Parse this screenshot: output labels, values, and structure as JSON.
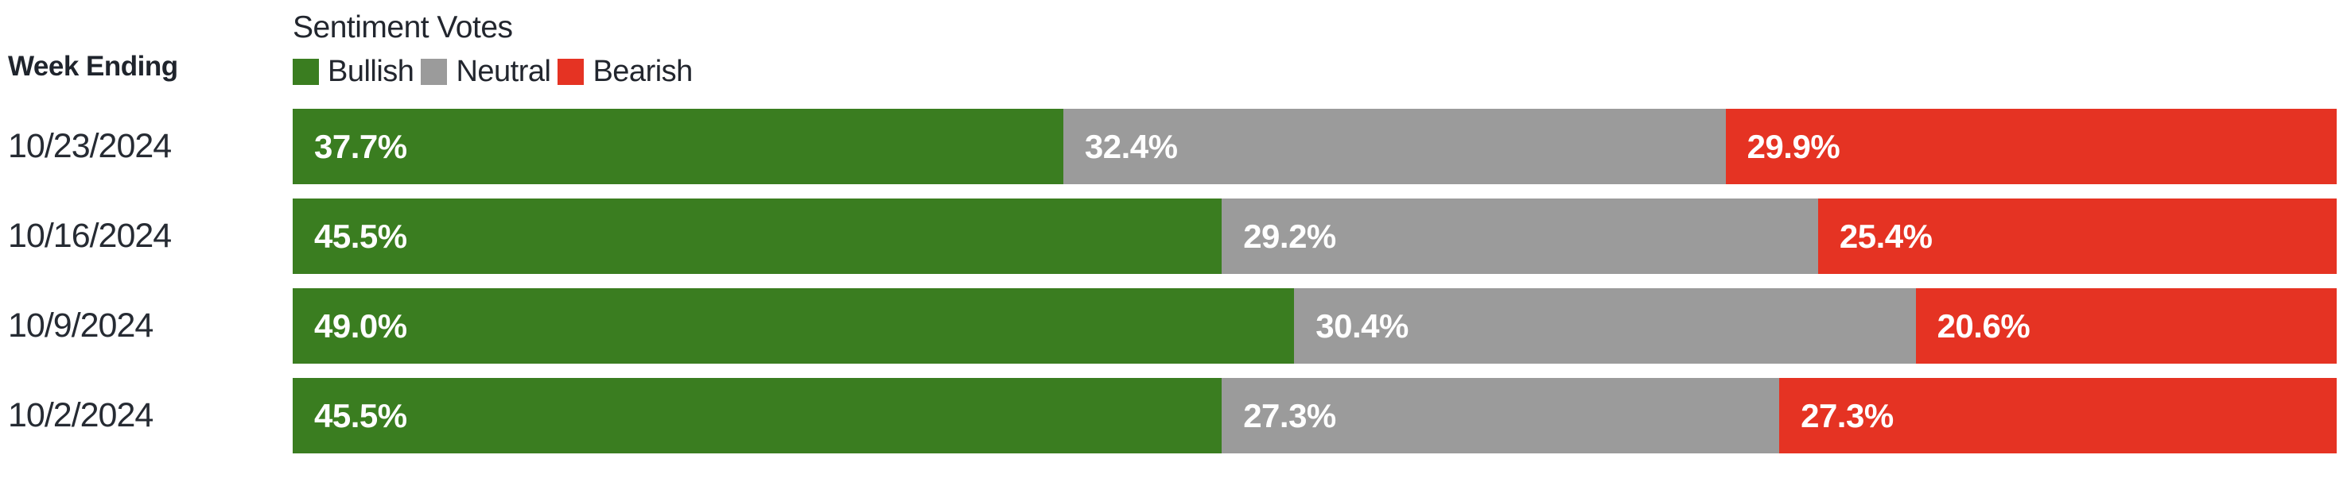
{
  "header": {
    "row_label_title": "Week Ending",
    "chart_title": "Sentiment Votes"
  },
  "colors": {
    "bullish": "#3a7d20",
    "neutral": "#9b9b9b",
    "bearish": "#e53323",
    "text_dark": "#22262e",
    "bar_label_text": "#ffffff",
    "background": "#ffffff"
  },
  "chart_data": {
    "type": "bar",
    "orientation": "horizontal",
    "stacked": true,
    "title": "Sentiment Votes",
    "category_label": "Week Ending",
    "legend_position": "top",
    "grid": false,
    "xlim": [
      0,
      100
    ],
    "value_suffix": "%",
    "value_decimals": 1,
    "categories": [
      "10/23/2024",
      "10/16/2024",
      "10/9/2024",
      "10/2/2024"
    ],
    "series": [
      {
        "name": "Bullish",
        "color": "#3a7d20",
        "values": [
          37.7,
          45.5,
          49.0,
          45.5
        ]
      },
      {
        "name": "Neutral",
        "color": "#9b9b9b",
        "values": [
          32.4,
          29.2,
          30.4,
          27.3
        ]
      },
      {
        "name": "Bearish",
        "color": "#e53323",
        "values": [
          29.9,
          25.4,
          20.6,
          27.3
        ]
      }
    ]
  }
}
